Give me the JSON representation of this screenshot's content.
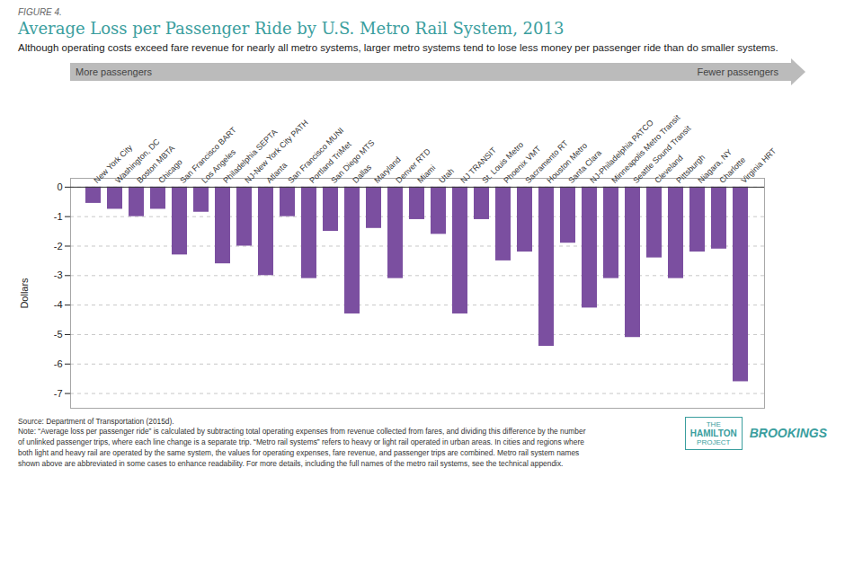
{
  "chart_data": {
    "type": "bar",
    "figure_label": "FIGURE 4.",
    "title": "Average Loss per Passenger Ride by U.S. Metro Rail System, 2013",
    "subtitle": "Although operating costs exceed fare revenue for nearly all metro systems, larger metro systems tend to lose less money per passenger ride than do smaller systems.",
    "ylabel": "Dollars",
    "categories": [
      "New York City",
      "Washington, DC",
      "Boston MBTA",
      "Chicago",
      "San Francisco BART",
      "Los Angeles",
      "Philadelphia SEPTA",
      "NJ-New York City PATH",
      "Atlanta",
      "San Francisco MUNI",
      "Portland TriMet",
      "San Diego MTS",
      "Dallas",
      "Maryland",
      "Denver RTD",
      "Miami",
      "Utah",
      "NJ TRANSIT",
      "St. Louis Metro",
      "Phoenix VMT",
      "Sacramento RT",
      "Houston Metro",
      "Santa Clara",
      "NJ-Philadelphia PATCO",
      "Minneapolis Metro Transit",
      "Seattle Sound Transit",
      "Cleveland",
      "Pittsburgh",
      "Niagara, NY",
      "Charlotte",
      "Virginia HRT"
    ],
    "values": [
      -0.55,
      -0.75,
      -1.0,
      -0.75,
      -2.3,
      -0.85,
      -2.6,
      -2.0,
      -3.0,
      -1.0,
      -3.1,
      -1.5,
      -4.3,
      -1.4,
      -3.1,
      -1.1,
      -1.6,
      -4.3,
      -1.1,
      -2.5,
      -2.2,
      -5.4,
      -1.9,
      -4.1,
      -3.1,
      -5.1,
      -2.4,
      -3.1,
      -2.2,
      -2.1,
      -6.6
    ],
    "color": "#7B4FA0",
    "ylim": [
      -7.5,
      0.3
    ],
    "yticks": [
      0,
      -1,
      -2,
      -3,
      -4,
      -5,
      -6,
      -7
    ],
    "grid": true,
    "annotations": [
      "More passengers",
      "Fewer passengers"
    ],
    "source": "Source: Department of Transportation (2015d).\nNote:  “Average loss per passenger ride” is calculated by subtracting total operating expenses from revenue collected from fares, and dividing this difference by the number\nof unlinked passenger trips, where each line change is a separate trip. “Metro rail systems” refers to heavy or light rail operated in urban areas. In cities and regions where\nboth light and heavy rail are operated by the same system, the values for operating expenses, fare revenue, and passenger trips are combined. Metro rail system names\nshown above are abbreviated in some cases to enhance readability. For more details, including the full names of the metro rail systems, see the technical appendix.",
    "logo": [
      "THE",
      "HAMILTON",
      "PROJECT",
      "BROOKINGS"
    ]
  }
}
